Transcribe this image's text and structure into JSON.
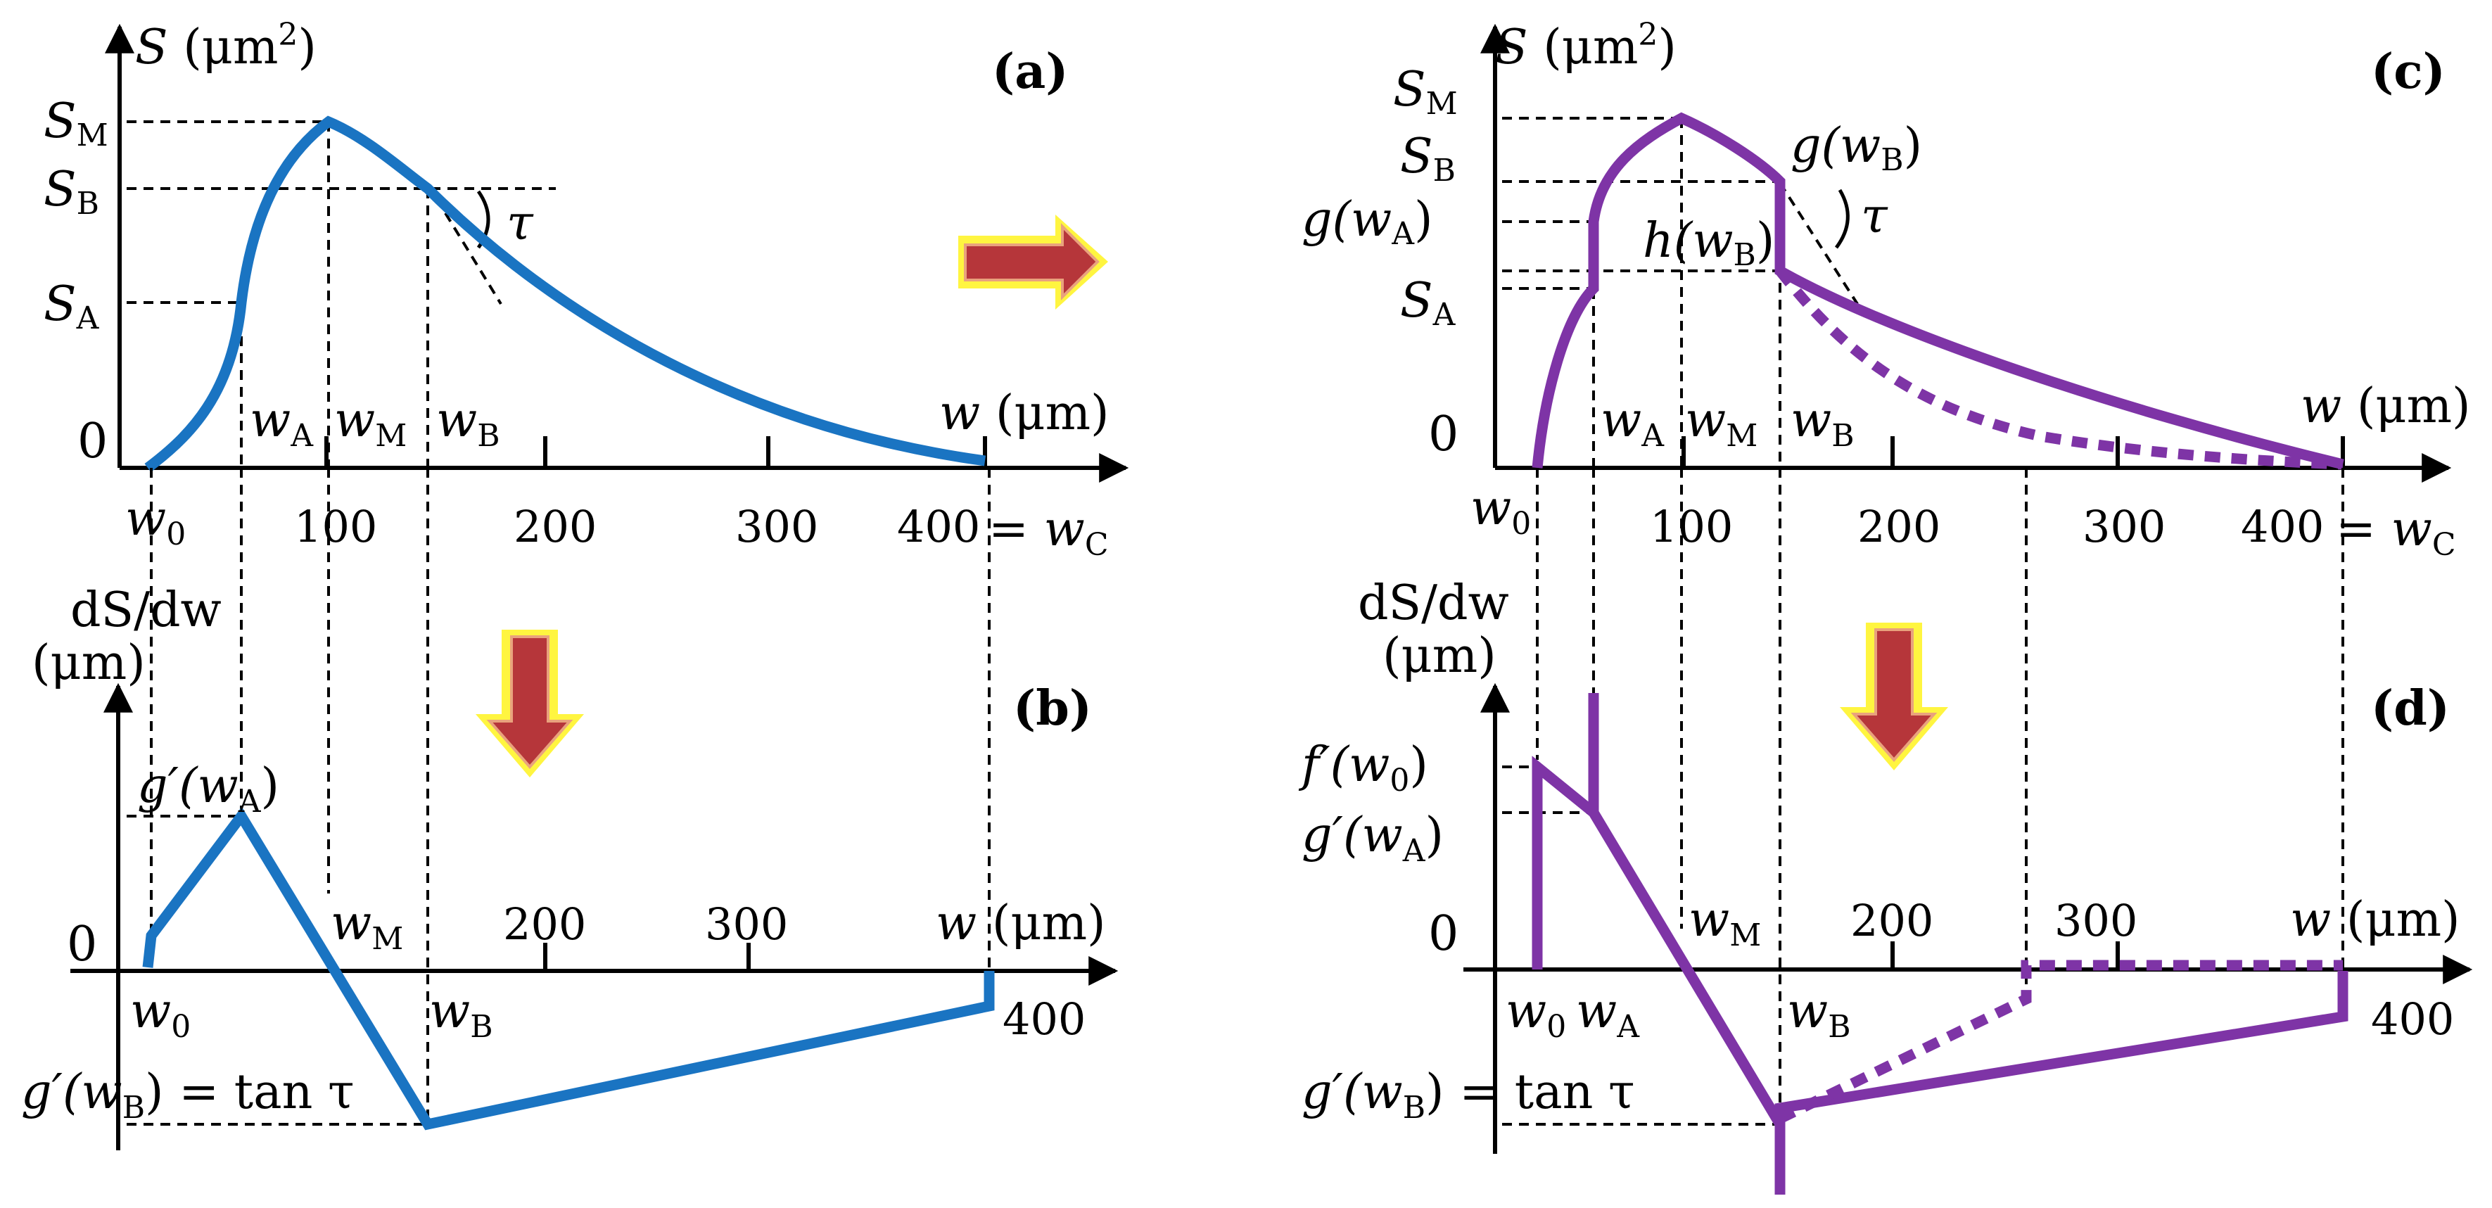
{
  "colors": {
    "blue_curve": "#1a74c2",
    "purple_curve": "#7e34a6",
    "arrow_fill": "#b6363a",
    "arrow_glow": "#fff200"
  },
  "icons": [
    "right-arrow-icon",
    "down-arrow-icon"
  ],
  "panel_a": {
    "tag": "a",
    "y_axis": {
      "symbol": "S",
      "unit": "(μm",
      "sup": "2",
      "close": ")"
    },
    "x_axis": {
      "symbol": "w",
      "unit": "(μm)"
    },
    "y_labels": {
      "SM": "S",
      "SM_sub": "M",
      "SB": "S",
      "SB_sub": "B",
      "SA": "S",
      "SA_sub": "A",
      "zero": "0"
    },
    "x_marks": {
      "wA": "w",
      "wA_sub": "A",
      "wM": "w",
      "wM_sub": "M",
      "wB": "w",
      "wB_sub": "B",
      "w0": "w",
      "w0_sub": "0",
      "wC": "w",
      "wC_sub": "C",
      "eq": "= "
    },
    "ticks": [
      "100",
      "200",
      "300",
      "400"
    ],
    "tau": "τ"
  },
  "panel_b": {
    "tag": "b",
    "y_axis": {
      "line1": "dS/dw",
      "line2": "(μm)"
    },
    "x_axis": {
      "symbol": "w",
      "unit": "(μm)"
    },
    "zero": "0",
    "peak": {
      "g": "g′(w",
      "sub": "A",
      "close": ")"
    },
    "bottom": {
      "g": "g′(w",
      "sub": "B",
      "close": ") = tan τ"
    },
    "x_marks": {
      "wM": "w",
      "wM_sub": "M",
      "w0": "w",
      "w0_sub": "0",
      "wB": "w",
      "wB_sub": "B"
    },
    "ticks": [
      "200",
      "300",
      "400"
    ]
  },
  "panel_c": {
    "tag": "c",
    "y_axis": {
      "symbol": "S",
      "unit": "(μm",
      "sup": "2",
      "close": ")"
    },
    "x_axis": {
      "symbol": "w",
      "unit": "(μm)"
    },
    "y_labels": {
      "SM": "S",
      "SM_sub": "M",
      "SB": "S",
      "SB_sub": "B",
      "gwA": "g(w",
      "gwA_sub": "A",
      "gwA_close": ")",
      "SA": "S",
      "SA_sub": "A",
      "zero": "0"
    },
    "annot": {
      "gwB": "g(w",
      "gwB_sub": "B",
      "gwB_close": ")",
      "hwB": "h(w",
      "hwB_sub": "B",
      "hwB_close": ")"
    },
    "x_marks": {
      "wA": "w",
      "wA_sub": "A",
      "wM": "w",
      "wM_sub": "M",
      "wB": "w",
      "wB_sub": "B",
      "w0": "w",
      "w0_sub": "0",
      "wC": "w",
      "wC_sub": "C",
      "eq": "= "
    },
    "ticks": [
      "100",
      "200",
      "300",
      "400"
    ],
    "tau": "τ"
  },
  "panel_d": {
    "tag": "d",
    "y_axis": {
      "line1": "dS/dw",
      "line2": "(μm)"
    },
    "x_axis": {
      "symbol": "w",
      "unit": "(μm)"
    },
    "zero": "0",
    "f0": {
      "g": "f′(w",
      "sub": "0",
      "close": ")"
    },
    "gA": {
      "g": "g′(w",
      "sub": "A",
      "close": ")"
    },
    "bottom": {
      "g": "g′(w",
      "sub": "B",
      "close": ") = tan τ"
    },
    "x_marks": {
      "wM": "w",
      "wM_sub": "M",
      "w0": "w",
      "w0_sub": "0",
      "wA": "w",
      "wA_sub": "A",
      "wB": "w",
      "wB_sub": "B"
    },
    "ticks": [
      "200",
      "300",
      "400"
    ]
  }
}
